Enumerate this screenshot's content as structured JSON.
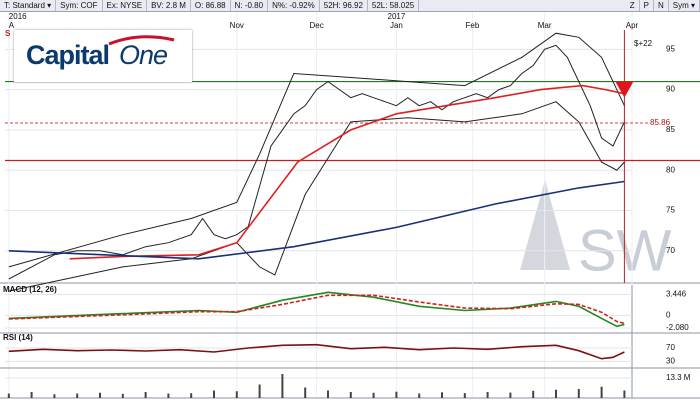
{
  "toolbar": {
    "items": [
      "T: Standard ▾",
      "Sym: COF",
      "Ex: NYSE",
      "BV: 2.8 M",
      "O: 86.88",
      "N: -0.80",
      "N%: -0.92%",
      "52H: 96.92",
      "52L: 58.025"
    ],
    "right_items": [
      "Z",
      "P",
      "N",
      "Sym ▾"
    ]
  },
  "logo": {
    "text1": "Capital",
    "text2": "One"
  },
  "watermark": "SW",
  "corner_label": "S",
  "chart_data": [
    {
      "type": "line",
      "xlim": [
        -1,
        164
      ],
      "ylim": [
        66,
        97.4
      ],
      "yticks": [
        70,
        75,
        80,
        85,
        90,
        95
      ],
      "xticks": [
        {
          "value": 0,
          "label": "A"
        },
        {
          "value": 60,
          "label": "Nov"
        },
        {
          "value": 81,
          "label": "Dec"
        },
        {
          "value": 102,
          "label": "Jan"
        },
        {
          "value": 122,
          "label": "Feb"
        },
        {
          "value": 141,
          "label": "Mar"
        },
        {
          "value": 164,
          "label": "Apr"
        }
      ],
      "years": [
        {
          "value": 0,
          "label": "2016"
        },
        {
          "value": 102,
          "label": "2017"
        }
      ],
      "hlines": [
        {
          "value": 91,
          "color": "#1f7a1f"
        },
        {
          "value": 81.2,
          "color": "#c02020"
        }
      ],
      "last_price": 85.86,
      "annotation": "$+22",
      "vline": 162,
      "signal": {
        "x": 162,
        "value": 90
      },
      "series": [
        {
          "color": "#222222",
          "x": [
            0,
            6,
            12,
            18,
            24,
            30,
            36,
            42,
            48,
            51,
            54,
            57,
            60,
            63,
            66,
            69,
            72,
            75,
            78,
            81,
            84,
            87,
            90,
            93,
            96,
            99,
            102,
            105,
            108,
            111,
            114,
            117,
            120,
            123,
            126,
            129,
            132,
            135,
            138,
            141,
            144,
            147,
            150,
            153,
            156,
            159,
            162
          ],
          "values": [
            66.5,
            68,
            69.5,
            70,
            70,
            69.5,
            70.5,
            71,
            72,
            74,
            72,
            71.5,
            72,
            73,
            78,
            83,
            85,
            87,
            88,
            90,
            91,
            90,
            89,
            89.5,
            89,
            88.5,
            88,
            89,
            88,
            88.5,
            87.5,
            88.5,
            89,
            89.5,
            89,
            90,
            90.5,
            92,
            93,
            95,
            95.5,
            94,
            91,
            88,
            84,
            83,
            86
          ]
        },
        {
          "color": "#222222",
          "x": [
            0,
            30,
            48,
            60,
            66,
            75,
            90,
            105,
            120,
            135,
            144,
            150,
            156,
            162
          ],
          "values": [
            68,
            72,
            74,
            76,
            82,
            92,
            91.5,
            91,
            90.5,
            94,
            97,
            96.5,
            94,
            88
          ]
        },
        {
          "color": "#222222",
          "x": [
            0,
            30,
            48,
            60,
            66,
            70,
            78,
            90,
            105,
            120,
            135,
            144,
            150,
            156,
            160,
            162
          ],
          "values": [
            65,
            68,
            69,
            71,
            68,
            67,
            77,
            86,
            86.5,
            86,
            87,
            88.5,
            86,
            81,
            80,
            81
          ]
        },
        {
          "color": "#e02020",
          "x": [
            16,
            30,
            50,
            60,
            76,
            90,
            102,
            115,
            128,
            140,
            151,
            157,
            162
          ],
          "values": [
            69,
            69.3,
            69.5,
            71,
            81,
            85,
            87,
            88,
            89,
            90,
            90.5,
            90,
            89.5
          ]
        },
        {
          "color": "#17307a",
          "x": [
            0,
            25,
            50,
            75,
            102,
            128,
            150,
            162
          ],
          "values": [
            70,
            69.5,
            69,
            70.5,
            72.9,
            75.8,
            77.8,
            78.6
          ]
        }
      ]
    },
    {
      "type": "line",
      "title": "MACD (12, 26)",
      "xlim": [
        -1,
        164
      ],
      "ylim": [
        -2.9,
        5
      ],
      "yticks": [
        3.446,
        0,
        -2.08
      ],
      "yticks_labels": [
        "3.446",
        "0",
        "-2.080"
      ],
      "series": [
        {
          "color": "#1f8a1f",
          "x": [
            0,
            30,
            50,
            60,
            72,
            84,
            96,
            108,
            120,
            132,
            144,
            150,
            156,
            160,
            162
          ],
          "values": [
            -0.5,
            0.3,
            0.8,
            0.5,
            2.5,
            3.8,
            3,
            1.5,
            0.8,
            1.2,
            2.3,
            1.5,
            -0.5,
            -1.8,
            -1.5
          ]
        },
        {
          "color": "#d02020",
          "dash": true,
          "x": [
            0,
            30,
            50,
            60,
            72,
            84,
            96,
            108,
            120,
            132,
            144,
            150,
            156,
            160,
            162
          ],
          "values": [
            -0.6,
            0.1,
            0.6,
            0.6,
            1.8,
            3.3,
            3.3,
            2.2,
            1.2,
            1.1,
            1.9,
            1.8,
            0.5,
            -1,
            -1.3
          ]
        }
      ]
    },
    {
      "type": "line",
      "title": "RSI (14)",
      "xlim": [
        -1,
        164
      ],
      "ylim": [
        10,
        115
      ],
      "yticks": [
        70,
        30
      ],
      "series": [
        {
          "color": "#7a1010",
          "x": [
            0,
            9,
            18,
            27,
            36,
            45,
            54,
            63,
            72,
            81,
            90,
            99,
            108,
            117,
            126,
            135,
            144,
            150,
            156,
            159,
            162
          ],
          "values": [
            60,
            66,
            62,
            64,
            61,
            65,
            58,
            70,
            78,
            80,
            68,
            72,
            65,
            70,
            66,
            74,
            78,
            62,
            38,
            42,
            58
          ]
        }
      ]
    },
    {
      "type": "bar",
      "xlim": [
        -1,
        164
      ],
      "ylim": [
        0,
        20
      ],
      "yticks": [
        {
          "value": 13.3,
          "label": "13.3 M"
        }
      ],
      "color": "#444444",
      "x": [
        0,
        6,
        12,
        18,
        24,
        30,
        36,
        42,
        48,
        54,
        60,
        66,
        72,
        78,
        84,
        90,
        96,
        102,
        108,
        114,
        120,
        126,
        132,
        138,
        144,
        150,
        156,
        162
      ],
      "values": [
        3,
        4,
        2.5,
        3,
        3.5,
        2.8,
        4,
        3,
        3.2,
        5,
        4.5,
        9,
        16,
        7,
        5,
        4,
        3.5,
        4.2,
        3,
        3.8,
        3.3,
        4,
        3.6,
        4.8,
        5.5,
        6,
        7.5,
        5
      ]
    }
  ]
}
